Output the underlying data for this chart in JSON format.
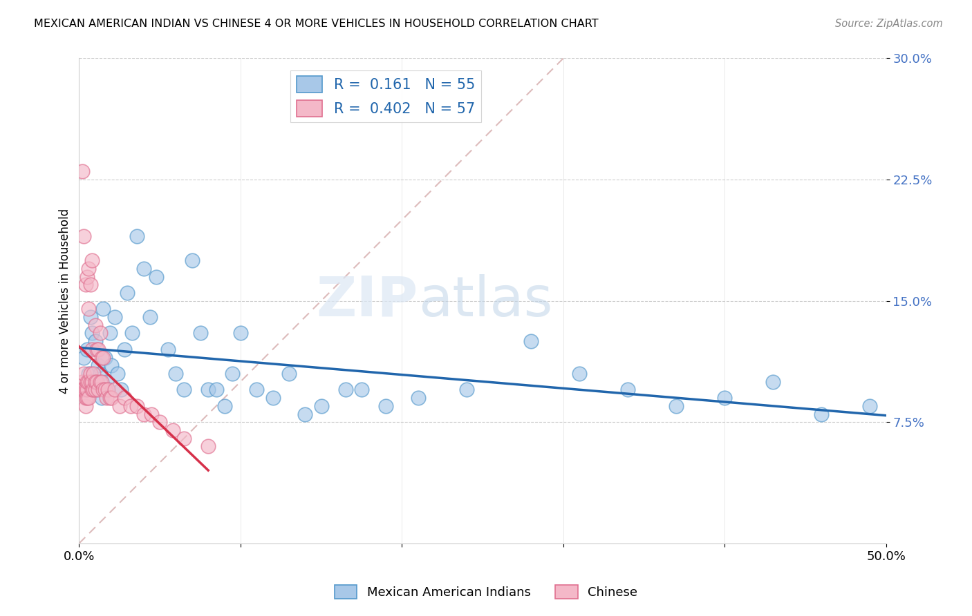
{
  "title": "MEXICAN AMERICAN INDIAN VS CHINESE 4 OR MORE VEHICLES IN HOUSEHOLD CORRELATION CHART",
  "source": "Source: ZipAtlas.com",
  "ylabel": "4 or more Vehicles in Household",
  "xlim": [
    0,
    0.5
  ],
  "ylim": [
    0,
    0.3
  ],
  "yticks": [
    0.075,
    0.15,
    0.225,
    0.3
  ],
  "yticklabels": [
    "7.5%",
    "15.0%",
    "22.5%",
    "30.0%"
  ],
  "xtick_positions": [
    0.0,
    0.1,
    0.2,
    0.3,
    0.4,
    0.5
  ],
  "xtick_labels": [
    "0.0%",
    "",
    "",
    "",
    "",
    "50.0%"
  ],
  "blue_R": "0.161",
  "blue_N": "55",
  "pink_R": "0.402",
  "pink_N": "57",
  "blue_color": "#a8c8e8",
  "pink_color": "#f4b8c8",
  "blue_line_color": "#2166ac",
  "pink_line_color": "#d6304a",
  "diag_color": "#ddbbbb",
  "legend_blue_label": "Mexican American Indians",
  "legend_pink_label": "Chinese",
  "watermark_zip": "ZIP",
  "watermark_atlas": "atlas",
  "blue_x": [
    0.003,
    0.005,
    0.006,
    0.007,
    0.008,
    0.009,
    0.01,
    0.011,
    0.012,
    0.013,
    0.014,
    0.015,
    0.016,
    0.017,
    0.018,
    0.019,
    0.02,
    0.022,
    0.024,
    0.026,
    0.028,
    0.03,
    0.033,
    0.036,
    0.04,
    0.044,
    0.048,
    0.055,
    0.06,
    0.065,
    0.07,
    0.075,
    0.08,
    0.085,
    0.09,
    0.095,
    0.1,
    0.11,
    0.12,
    0.13,
    0.14,
    0.15,
    0.165,
    0.175,
    0.19,
    0.21,
    0.24,
    0.28,
    0.31,
    0.34,
    0.37,
    0.4,
    0.43,
    0.46,
    0.49
  ],
  "blue_y": [
    0.115,
    0.12,
    0.105,
    0.14,
    0.13,
    0.1,
    0.125,
    0.095,
    0.11,
    0.105,
    0.09,
    0.145,
    0.115,
    0.1,
    0.095,
    0.13,
    0.11,
    0.14,
    0.105,
    0.095,
    0.12,
    0.155,
    0.13,
    0.19,
    0.17,
    0.14,
    0.165,
    0.12,
    0.105,
    0.095,
    0.175,
    0.13,
    0.095,
    0.095,
    0.085,
    0.105,
    0.13,
    0.095,
    0.09,
    0.105,
    0.08,
    0.085,
    0.095,
    0.095,
    0.085,
    0.09,
    0.095,
    0.125,
    0.105,
    0.095,
    0.085,
    0.09,
    0.1,
    0.08,
    0.085
  ],
  "pink_x": [
    0.001,
    0.002,
    0.002,
    0.002,
    0.003,
    0.003,
    0.003,
    0.004,
    0.004,
    0.004,
    0.004,
    0.005,
    0.005,
    0.005,
    0.005,
    0.006,
    0.006,
    0.006,
    0.006,
    0.007,
    0.007,
    0.007,
    0.008,
    0.008,
    0.008,
    0.008,
    0.009,
    0.009,
    0.01,
    0.01,
    0.01,
    0.011,
    0.011,
    0.012,
    0.012,
    0.013,
    0.013,
    0.014,
    0.014,
    0.015,
    0.015,
    0.016,
    0.017,
    0.018,
    0.019,
    0.02,
    0.022,
    0.025,
    0.028,
    0.032,
    0.036,
    0.04,
    0.045,
    0.05,
    0.058,
    0.065,
    0.08
  ],
  "pink_y": [
    0.095,
    0.1,
    0.095,
    0.23,
    0.105,
    0.095,
    0.19,
    0.085,
    0.095,
    0.09,
    0.16,
    0.09,
    0.095,
    0.1,
    0.165,
    0.09,
    0.1,
    0.145,
    0.17,
    0.1,
    0.105,
    0.16,
    0.095,
    0.1,
    0.12,
    0.175,
    0.095,
    0.105,
    0.095,
    0.1,
    0.135,
    0.1,
    0.12,
    0.095,
    0.12,
    0.1,
    0.13,
    0.1,
    0.115,
    0.095,
    0.115,
    0.095,
    0.09,
    0.095,
    0.09,
    0.09,
    0.095,
    0.085,
    0.09,
    0.085,
    0.085,
    0.08,
    0.08,
    0.075,
    0.07,
    0.065,
    0.06
  ]
}
